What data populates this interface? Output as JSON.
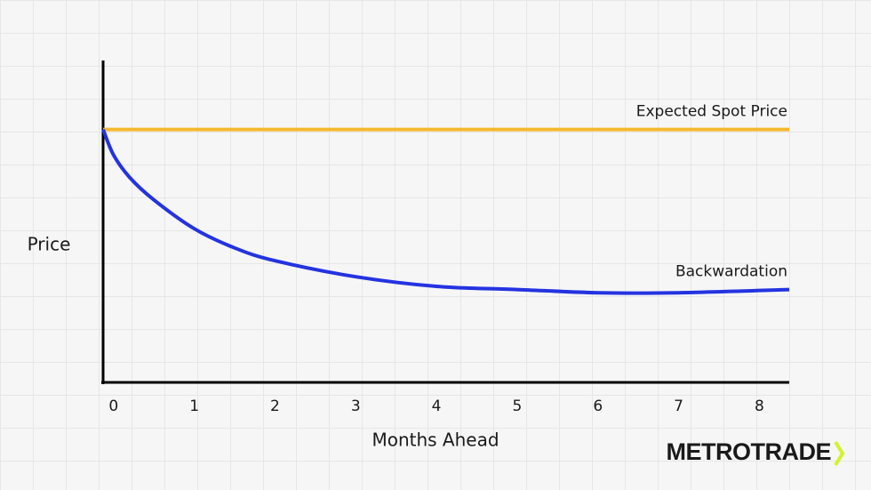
{
  "chart_data": {
    "type": "line",
    "x_label": "Months Ahead",
    "y_label": "Price",
    "xlim": [
      -0.13,
      8.37
    ],
    "xticks": [
      0,
      1,
      2,
      3,
      4,
      5,
      6,
      7,
      8
    ],
    "ylim": [
      0,
      100
    ],
    "series": [
      {
        "name": "Expected Spot Price",
        "color": "#f5b82e",
        "x": [
          -0.13,
          8.37
        ],
        "values": [
          79,
          79
        ]
      },
      {
        "name": "Backwardation",
        "color": "#2433e0",
        "x": [
          -0.13,
          0,
          0.2,
          0.5,
          1,
          1.5,
          2,
          3,
          4,
          5,
          6,
          7,
          8.37
        ],
        "values": [
          79,
          71,
          64,
          57,
          48,
          42,
          38,
          33,
          30,
          29,
          28,
          28,
          29
        ]
      }
    ],
    "logo": "METROTRADE"
  }
}
